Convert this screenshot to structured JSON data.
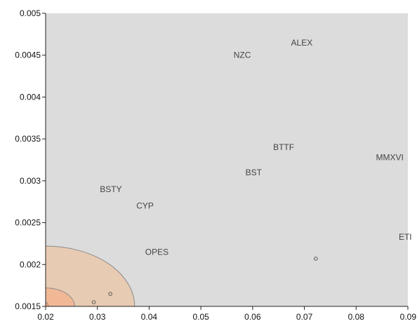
{
  "chart_data": {
    "type": "scatter",
    "title": "",
    "xlabel": "",
    "ylabel": "",
    "xlim": [
      0.02,
      0.09
    ],
    "ylim": [
      0.0015,
      0.005
    ],
    "x_ticks": [
      "0.02",
      "0.03",
      "0.04",
      "0.05",
      "0.06",
      "0.07",
      "0.08",
      "0.09"
    ],
    "y_ticks": [
      "0.0015",
      "0.002",
      "0.0025",
      "0.003",
      "0.0035",
      "0.004",
      "0.0045",
      "0.005"
    ],
    "grid": false,
    "colors": {
      "plot_background": "#dcdcdc",
      "contour_outer": "#e8cbb3",
      "contour_middle": "#f1b896",
      "contour_inner": "#f5a676",
      "contour_line": "#8a8a8a"
    },
    "labeled_points": [
      {
        "label": "ALEX",
        "x": 0.0695,
        "y": 0.00465
      },
      {
        "label": "NZC",
        "x": 0.058,
        "y": 0.0045
      },
      {
        "label": "BTTF",
        "x": 0.066,
        "y": 0.0034
      },
      {
        "label": "MMXVI",
        "x": 0.0865,
        "y": 0.00328
      },
      {
        "label": "BST",
        "x": 0.0602,
        "y": 0.0031
      },
      {
        "label": "BSTY",
        "x": 0.0326,
        "y": 0.0029
      },
      {
        "label": "CYP",
        "x": 0.0392,
        "y": 0.0027
      },
      {
        "label": "ETI",
        "x": 0.0895,
        "y": 0.00233
      },
      {
        "label": "OPES",
        "x": 0.0415,
        "y": 0.00215
      }
    ],
    "markers": [
      {
        "x": 0.0722,
        "y": 0.00207
      },
      {
        "x": 0.0325,
        "y": 0.00165
      },
      {
        "x": 0.0293,
        "y": 0.00155
      }
    ],
    "contours": [
      {
        "level": "outer",
        "x_at_ymin": 0.0372,
        "y_at_xmin": 0.00222
      },
      {
        "level": "middle",
        "x_at_ymin": 0.0256,
        "y_at_xmin": 0.00172
      },
      {
        "level": "inner",
        "x_at_ymin": 0.0205,
        "y_at_xmin": 0.00155
      }
    ]
  }
}
